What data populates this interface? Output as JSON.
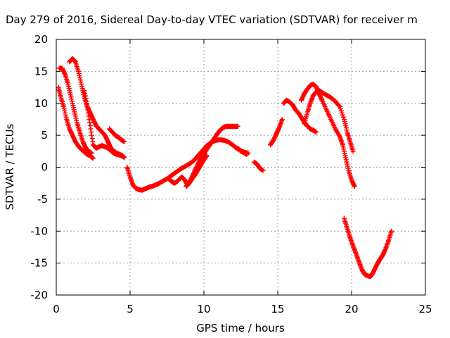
{
  "chart_data": {
    "type": "scatter",
    "title": "Day 279 of 2016, Sidereal Day-to-day VTEC variation (SDTVAR) for receiver m",
    "xlabel": "GPS time / hours",
    "ylabel": "SDTVAR / TECUs",
    "xlim": [
      0,
      25
    ],
    "ylim": [
      -20,
      20
    ],
    "xticks": [
      "0",
      "5",
      "10",
      "15",
      "20",
      "25"
    ],
    "yticks": [
      "-20",
      "-15",
      "-10",
      "-5",
      "0",
      "5",
      "10",
      "15",
      "20"
    ],
    "grid": true,
    "marker": "plus",
    "color": "#ff0000",
    "series": [
      {
        "x": [
          0.2,
          0.4,
          0.6,
          0.8,
          1.0,
          1.2,
          1.4,
          1.6,
          1.8,
          2.0,
          2.2,
          2.4
        ],
        "y": [
          15.5,
          15.5,
          14.5,
          13.0,
          11.0,
          9.0,
          7.0,
          5.5,
          4.0,
          3.0,
          2.5,
          2.2
        ]
      },
      {
        "x": [
          0.15,
          0.3,
          0.5,
          0.7,
          0.9,
          1.1,
          1.3,
          1.5,
          1.7,
          1.9,
          2.1,
          2.3,
          2.5
        ],
        "y": [
          12.5,
          11.0,
          9.5,
          7.5,
          6.0,
          5.0,
          4.0,
          3.3,
          2.8,
          2.4,
          2.0,
          1.8,
          1.4
        ]
      },
      {
        "x": [
          0.9,
          1.1,
          1.3,
          1.5,
          1.7,
          1.9,
          2.1,
          2.3,
          2.5,
          2.7,
          2.9,
          3.1,
          3.3,
          3.5,
          3.7,
          3.9,
          4.1,
          4.3,
          4.5,
          4.6
        ],
        "y": [
          16.5,
          17.0,
          16.5,
          15.0,
          13.0,
          11.0,
          9.5,
          8.5,
          7.5,
          6.5,
          6.0,
          5.5,
          5.0,
          4.0,
          3.0,
          2.5,
          2.2,
          2.0,
          1.8,
          1.5
        ]
      },
      {
        "x": [
          1.9,
          2.1,
          2.3,
          2.5,
          2.7,
          2.9,
          3.1,
          3.3,
          3.5,
          3.7,
          3.9,
          4.1,
          4.3,
          4.5
        ],
        "y": [
          12.0,
          9.5,
          6.5,
          3.5,
          3.0,
          3.2,
          3.4,
          3.2,
          3.0,
          2.6,
          2.2,
          2.0,
          1.9,
          1.7
        ]
      },
      {
        "x": [
          3.6,
          3.8,
          4.0,
          4.2,
          4.4,
          4.6
        ],
        "y": [
          6.0,
          5.5,
          5.0,
          4.7,
          4.3,
          4.0
        ]
      },
      {
        "x": [
          4.8,
          5.0,
          5.2,
          5.4,
          5.6,
          5.8,
          6.0,
          6.3,
          6.6,
          6.9,
          7.2,
          7.5,
          7.8,
          8.1,
          8.4,
          8.7,
          9.0,
          9.3,
          9.6,
          9.9,
          10.2,
          10.5,
          10.8,
          11.1,
          11.4,
          11.7,
          12.0,
          12.2,
          12.5,
          12.8,
          13.0
        ],
        "y": [
          0.0,
          -1.5,
          -2.8,
          -3.3,
          -3.5,
          -3.6,
          -3.4,
          -3.1,
          -2.9,
          -2.6,
          -2.2,
          -1.8,
          -1.3,
          -0.8,
          -0.3,
          0.1,
          0.5,
          1.0,
          1.8,
          2.6,
          3.4,
          3.9,
          4.2,
          4.3,
          4.2,
          3.9,
          3.4,
          3.0,
          2.6,
          2.3,
          2.2
        ]
      },
      {
        "x": [
          7.6,
          7.8,
          8.0,
          8.2,
          8.5,
          8.7,
          8.9,
          9.1,
          9.3,
          9.5,
          9.7,
          9.9,
          10.1,
          10.3,
          10.5,
          10.7,
          10.9,
          11.1,
          11.3,
          11.5,
          11.7,
          11.9,
          12.1,
          12.3
        ],
        "y": [
          -1.8,
          -2.2,
          -2.5,
          -2.2,
          -1.5,
          -2.0,
          -2.8,
          -2.0,
          -1.0,
          0.0,
          1.0,
          1.8,
          2.5,
          3.2,
          3.8,
          4.5,
          5.2,
          5.8,
          6.2,
          6.4,
          6.4,
          6.4,
          6.4,
          6.4
        ]
      },
      {
        "x": [
          8.8,
          9.0,
          9.2,
          9.4,
          9.6,
          9.8,
          10.0,
          10.2
        ],
        "y": [
          -3.0,
          -2.5,
          -1.8,
          -1.2,
          -0.4,
          0.4,
          1.2,
          1.8
        ]
      },
      {
        "x": [
          12.3,
          12.5,
          12.7,
          12.9
        ],
        "y": [
          3.0,
          2.5,
          2.3,
          2.0
        ]
      },
      {
        "x": [
          13.4,
          13.6,
          13.8,
          14.0
        ],
        "y": [
          0.8,
          0.5,
          -0.2,
          -0.5
        ]
      },
      {
        "x": [
          14.5,
          14.7,
          14.9,
          15.1,
          15.3
        ],
        "y": [
          3.5,
          4.2,
          5.2,
          6.2,
          7.5
        ]
      },
      {
        "x": [
          15.4,
          15.6,
          15.8,
          16.0,
          16.2,
          16.4,
          16.6,
          16.8,
          17.0,
          17.2,
          17.4,
          17.6
        ],
        "y": [
          10.0,
          10.5,
          10.2,
          9.8,
          9.0,
          8.5,
          7.8,
          7.0,
          6.5,
          6.0,
          5.8,
          5.5
        ]
      },
      {
        "x": [
          16.6,
          16.8,
          17.0,
          17.2,
          17.4,
          17.6,
          17.8,
          18.0,
          18.3,
          18.6,
          18.9,
          19.2,
          19.4,
          19.6,
          19.8,
          20.0,
          20.2
        ],
        "y": [
          10.5,
          11.5,
          12.2,
          12.8,
          13.0,
          12.6,
          11.5,
          10.5,
          9.0,
          7.5,
          6.0,
          4.8,
          3.5,
          1.5,
          -0.5,
          -2.0,
          -3.0
        ]
      },
      {
        "x": [
          16.8,
          17.0,
          17.2,
          17.4,
          17.6,
          17.8,
          18.0,
          18.3,
          18.6,
          18.9,
          19.2,
          19.5,
          19.7,
          19.9,
          20.1
        ],
        "y": [
          6.8,
          8.5,
          10.0,
          11.2,
          11.8,
          12.0,
          11.7,
          11.3,
          10.9,
          10.3,
          9.5,
          7.5,
          5.5,
          4.0,
          2.5
        ]
      },
      {
        "x": [
          19.5,
          19.7,
          19.9,
          20.1,
          20.3,
          20.5,
          20.7,
          20.9,
          21.1,
          21.3,
          21.5,
          21.7,
          21.9,
          22.1,
          22.3,
          22.5,
          22.7
        ],
        "y": [
          -8.0,
          -9.5,
          -11.0,
          -12.3,
          -13.5,
          -14.8,
          -16.0,
          -16.8,
          -17.0,
          -17.1,
          -16.3,
          -15.3,
          -14.5,
          -13.8,
          -12.8,
          -11.5,
          -10.0
        ]
      }
    ]
  }
}
